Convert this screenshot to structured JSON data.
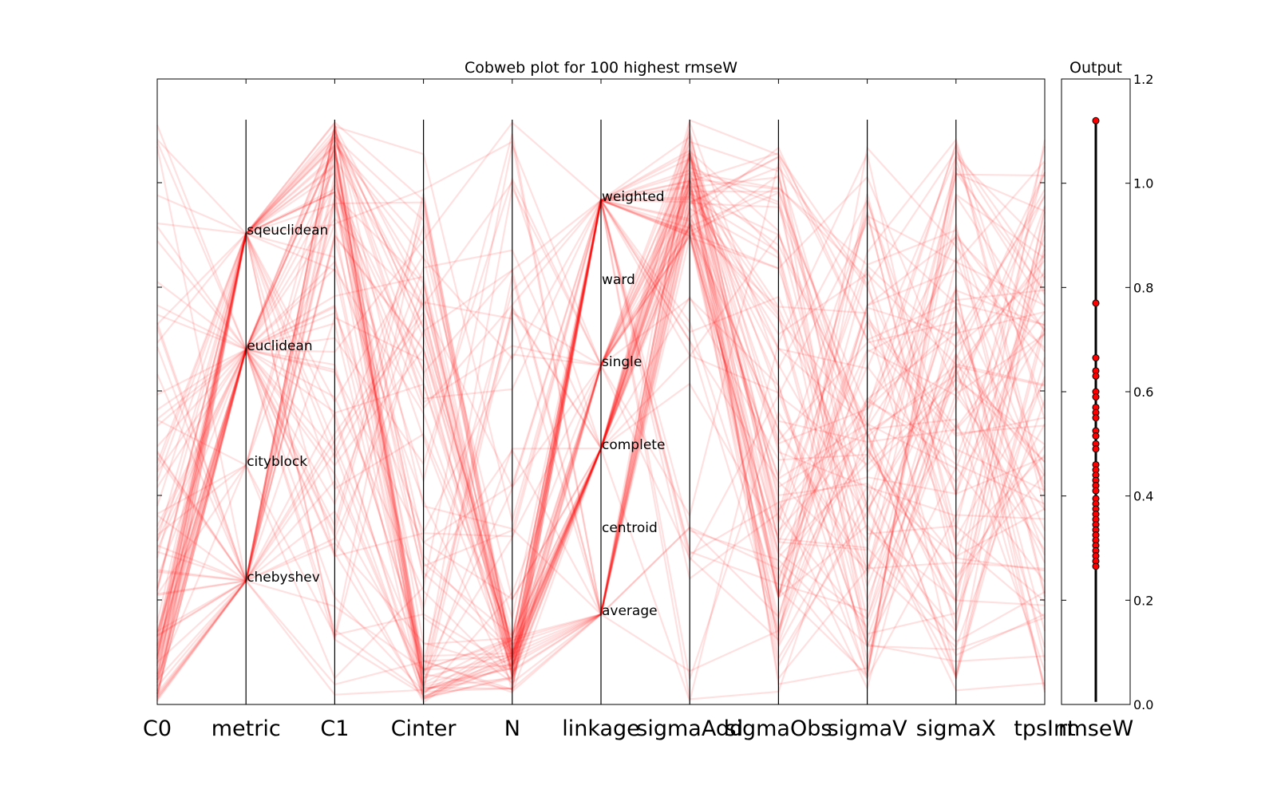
{
  "chart_data": [
    {
      "type": "parallel_coordinates",
      "title": "Cobweb plot for 100 highest rmseW",
      "axes": [
        "C0",
        "metric",
        "C1",
        "Cinter",
        "N",
        "linkage",
        "sigmaAdd",
        "sigmaObs",
        "sigmaV",
        "sigmaX",
        "tpsInt"
      ],
      "line_color": "#ff0000",
      "line_opacity": 0.12,
      "grid": false,
      "line_count": 100,
      "categorical_axes": {
        "metric": {
          "categories": [
            "chebyshev",
            "cityblock",
            "euclidean",
            "sqeuclidean"
          ],
          "counts": [
            30,
            10,
            40,
            20
          ]
        },
        "linkage": {
          "categories": [
            "average",
            "centroid",
            "complete",
            "single",
            "ward",
            "weighted"
          ],
          "counts": [
            22,
            0,
            22,
            30,
            0,
            26
          ]
        }
      }
    },
    {
      "type": "scatter",
      "title": "Output",
      "xlabel": "rmseW",
      "ylim": [
        0.0,
        1.2
      ],
      "yticks": [
        "0.0",
        "0.2",
        "0.4",
        "0.6",
        "0.8",
        "1.0",
        "1.2"
      ],
      "marker_color": "#ff0000",
      "values": [
        1.12,
        0.77,
        0.665,
        0.64,
        0.63,
        0.6,
        0.59,
        0.57,
        0.56,
        0.55,
        0.525,
        0.515,
        0.5,
        0.49,
        0.46,
        0.45,
        0.44,
        0.43,
        0.42,
        0.41,
        0.395,
        0.385,
        0.375,
        0.365,
        0.355,
        0.345,
        0.335,
        0.325,
        0.315,
        0.305,
        0.295,
        0.285,
        0.275,
        0.265
      ]
    }
  ]
}
